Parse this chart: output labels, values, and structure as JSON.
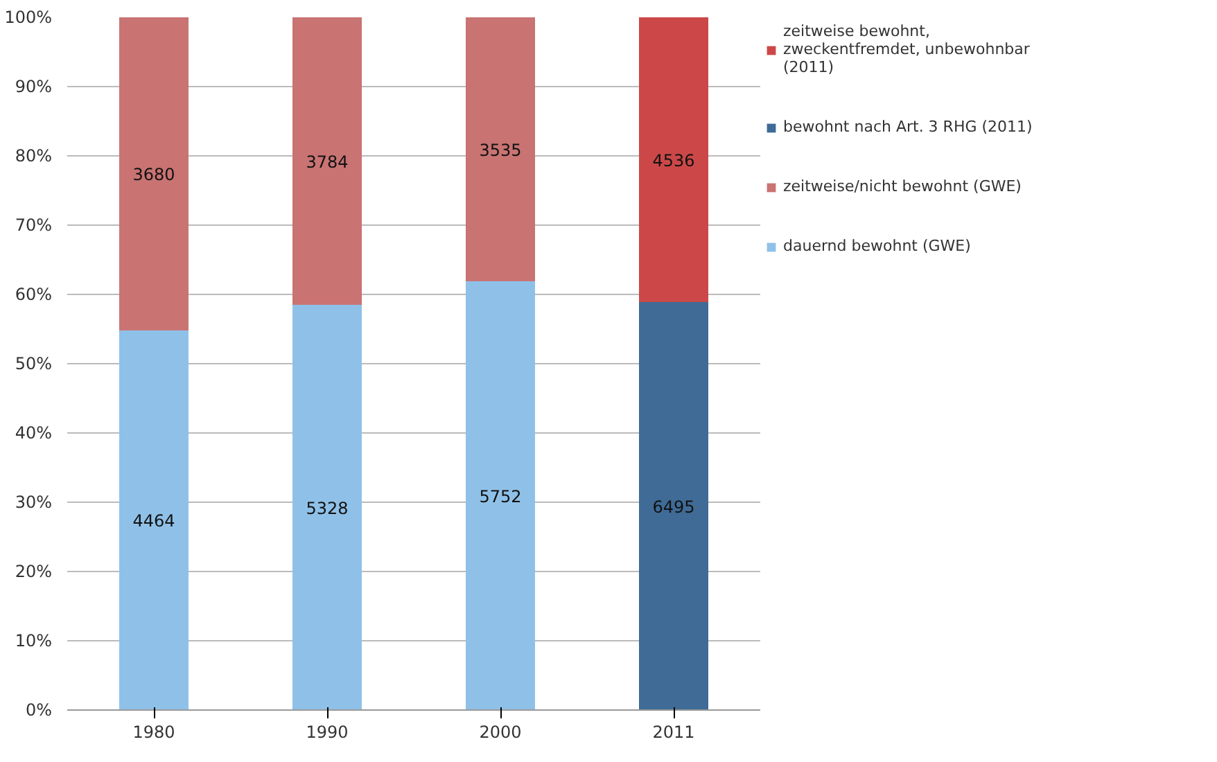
{
  "chart_data": {
    "type": "bar",
    "stacked": true,
    "categories": [
      "1980",
      "1990",
      "2000",
      "2011"
    ],
    "ylim": [
      0,
      100
    ],
    "yticks": [
      {
        "value": 0,
        "label": "0%"
      },
      {
        "value": 10,
        "label": "10%"
      },
      {
        "value": 20,
        "label": "20%"
      },
      {
        "value": 30,
        "label": "30%"
      },
      {
        "value": 40,
        "label": "40%"
      },
      {
        "value": 50,
        "label": "50%"
      },
      {
        "value": 60,
        "label": "60%"
      },
      {
        "value": 70,
        "label": "70%"
      },
      {
        "value": 80,
        "label": "80%"
      },
      {
        "value": 90,
        "label": "90%"
      },
      {
        "value": 100,
        "label": "100%"
      }
    ],
    "grid": "y",
    "legend": "right",
    "series": [
      {
        "name": "dauernd bewohnt (GWE)",
        "color": "#8fc1e8",
        "values": [
          54.8,
          58.5,
          61.9,
          null
        ]
      },
      {
        "name": "zeitweise/nicht bewohnt (GWE)",
        "color": "#c97373",
        "values": [
          45.2,
          41.5,
          38.1,
          null
        ]
      },
      {
        "name": "bewohnt nach Art. 3 RHG (2011)",
        "color": "#3f6b96",
        "values": [
          null,
          null,
          null,
          58.9
        ]
      },
      {
        "name": "zeitweise bewohnt, zweckentfremdet, unbewohnbar (2011)",
        "color": "#cc4848",
        "values": [
          null,
          null,
          null,
          41.1
        ]
      }
    ],
    "annotations": [
      "4464",
      "5328",
      "5752",
      "3680",
      "3784",
      "3535",
      "6495",
      "4536"
    ]
  }
}
